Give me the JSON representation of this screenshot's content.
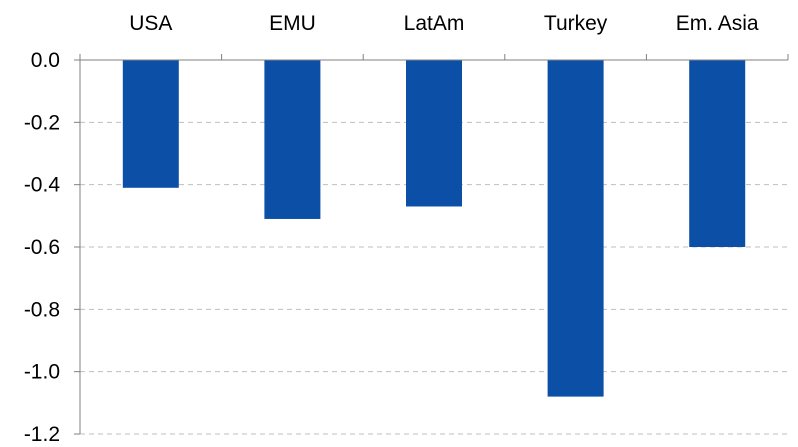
{
  "chart_data": {
    "type": "bar",
    "categories": [
      "USA",
      "EMU",
      "LatAm",
      "Turkey",
      "Em. Asia"
    ],
    "values": [
      -0.41,
      -0.51,
      -0.47,
      -1.08,
      -0.6
    ],
    "title": "",
    "xlabel": "",
    "ylabel": "",
    "ylim": [
      -1.2,
      0.0
    ],
    "yticks": [
      "0.0",
      "-0.2",
      "-0.4",
      "-0.6",
      "-0.8",
      "-1.0",
      "-1.2"
    ],
    "ytick_values": [
      0.0,
      -0.2,
      -0.4,
      -0.6,
      -0.8,
      -1.0,
      -1.2
    ],
    "grid": "horizontal dashed",
    "category_labels_position": "top",
    "bar_color": "#0B4FA6",
    "grid_color": "#BFBFBF",
    "axis_color": "#808080"
  }
}
